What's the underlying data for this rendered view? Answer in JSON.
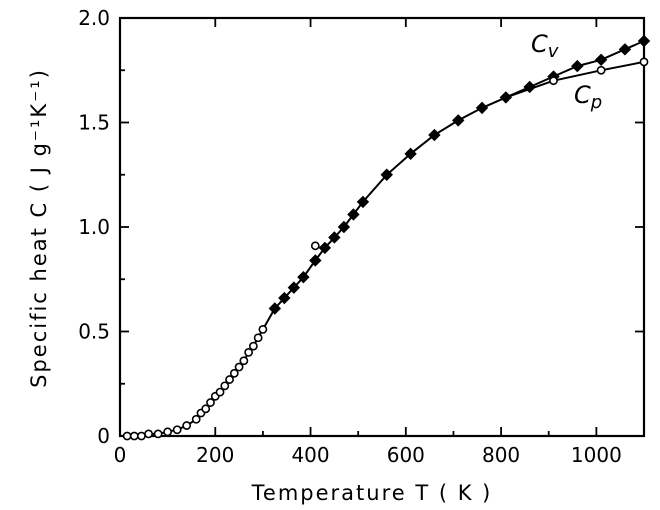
{
  "chart_data": {
    "type": "scatter",
    "title": "",
    "xlabel": "Temperature  T ( K )",
    "ylabel": "Specific heat  C ( J g⁻¹K⁻¹)",
    "xlim": [
      0,
      1100
    ],
    "ylim": [
      0,
      2.0
    ],
    "x_ticks": [
      "0",
      "200",
      "400",
      "600",
      "800",
      "1000"
    ],
    "y_ticks": [
      "0",
      "0.5",
      "1.0",
      "1.5",
      "2.0"
    ],
    "grid": false,
    "series": [
      {
        "name": "Cv",
        "marker": "filled-diamond",
        "points": [
          [
            325,
            0.61
          ],
          [
            345,
            0.66
          ],
          [
            365,
            0.71
          ],
          [
            385,
            0.76
          ],
          [
            410,
            0.84
          ],
          [
            430,
            0.9
          ],
          [
            450,
            0.95
          ],
          [
            470,
            1.0
          ],
          [
            490,
            1.06
          ],
          [
            510,
            1.12
          ],
          [
            560,
            1.25
          ],
          [
            610,
            1.35
          ],
          [
            660,
            1.44
          ],
          [
            710,
            1.51
          ],
          [
            760,
            1.57
          ],
          [
            810,
            1.62
          ],
          [
            860,
            1.67
          ],
          [
            910,
            1.72
          ],
          [
            960,
            1.77
          ],
          [
            1010,
            1.8
          ],
          [
            1060,
            1.85
          ],
          [
            1100,
            1.89
          ]
        ]
      },
      {
        "name": "Cp",
        "marker": "open-circle",
        "points": [
          [
            15,
            0.0
          ],
          [
            30,
            0.0
          ],
          [
            45,
            0.0
          ],
          [
            60,
            0.01
          ],
          [
            80,
            0.01
          ],
          [
            100,
            0.02
          ],
          [
            120,
            0.03
          ],
          [
            140,
            0.05
          ],
          [
            160,
            0.08
          ],
          [
            170,
            0.11
          ],
          [
            180,
            0.13
          ],
          [
            190,
            0.16
          ],
          [
            200,
            0.19
          ],
          [
            210,
            0.21
          ],
          [
            220,
            0.24
          ],
          [
            230,
            0.27
          ],
          [
            240,
            0.3
          ],
          [
            250,
            0.33
          ],
          [
            260,
            0.36
          ],
          [
            270,
            0.4
          ],
          [
            280,
            0.43
          ],
          [
            290,
            0.47
          ],
          [
            300,
            0.51
          ],
          [
            410,
            0.91
          ],
          [
            910,
            1.7
          ],
          [
            1010,
            1.75
          ],
          [
            1100,
            1.79
          ]
        ]
      }
    ],
    "labels": {
      "cv": "C",
      "cv_sub": "v",
      "cp": "C",
      "cp_sub": "p"
    }
  }
}
